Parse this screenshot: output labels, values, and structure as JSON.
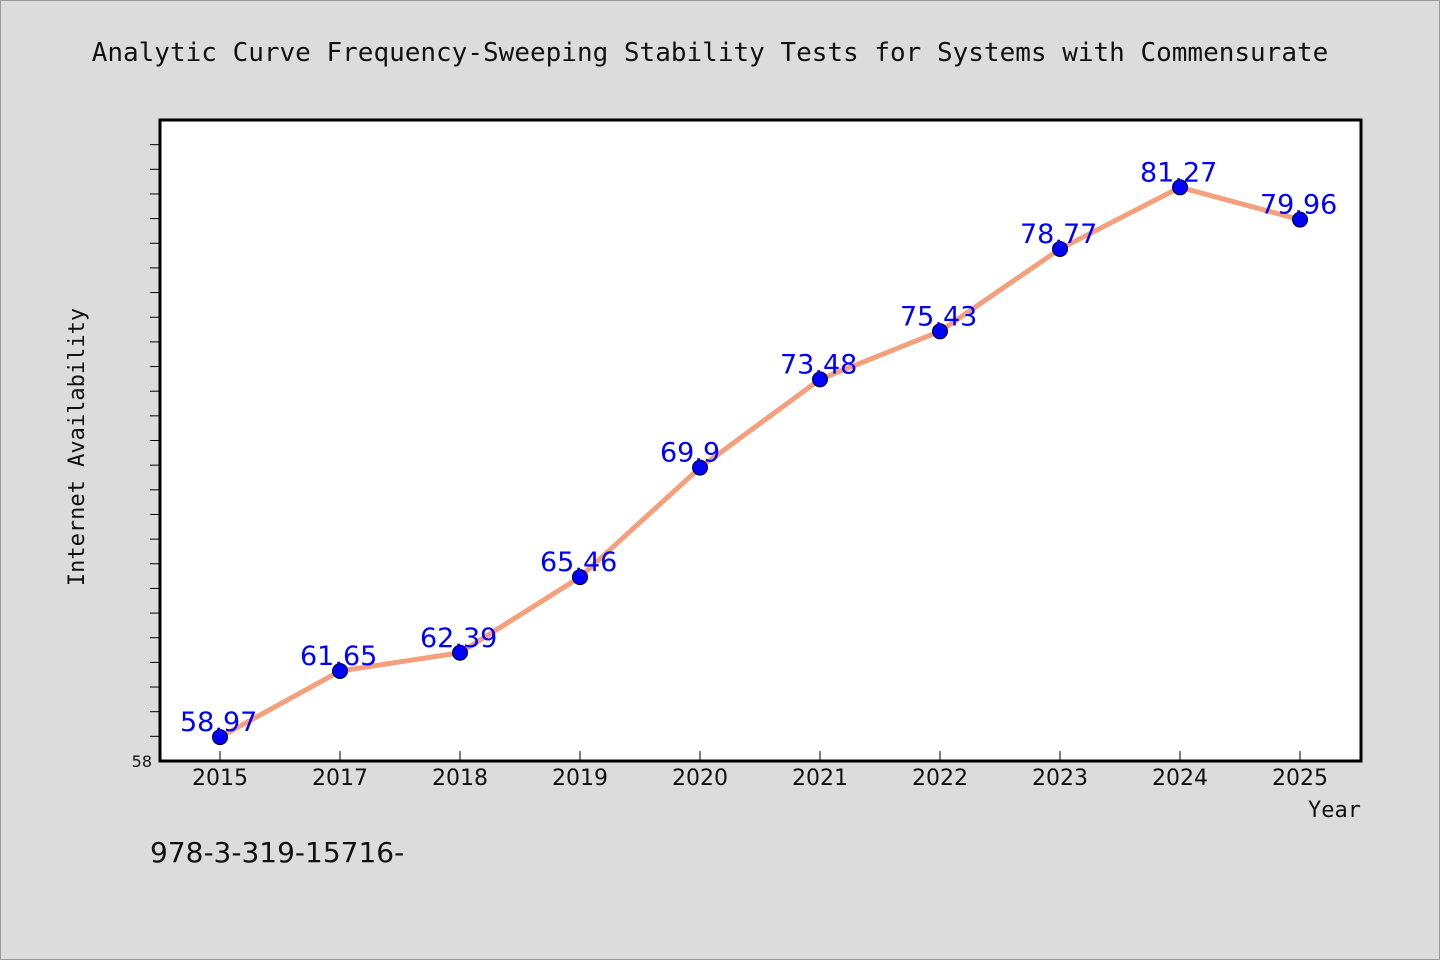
{
  "chart_data": {
    "type": "line",
    "title": "Analytic Curve Frequency-Sweeping Stability Tests for Systems with Commensurate",
    "xlabel": "Year",
    "ylabel": "Internet Availability",
    "categories": [
      "2015",
      "2017",
      "2018",
      "2019",
      "2020",
      "2021",
      "2022",
      "2023",
      "2024",
      "2025"
    ],
    "series": [
      {
        "values": [
          58.97,
          61.65,
          62.39,
          65.46,
          69.9,
          73.48,
          75.43,
          78.77,
          81.27,
          79.96
        ],
        "data_labels": [
          "58.97",
          "61.65",
          "62.39",
          "65.46",
          "69.9",
          "73.48",
          "75.43",
          "78.77",
          "81.27",
          "79.96"
        ]
      }
    ],
    "y_tick_labels": [
      "58"
    ],
    "ylim": [
      58,
      84
    ],
    "grid": false,
    "legend": "none",
    "colors": {
      "line": "#f4a07c",
      "marker": "#0000ff",
      "data_label": "#0000ff",
      "background": "#dcdcdc",
      "plot_background": "#ffffff"
    }
  },
  "footer": {
    "text": "978-3-319-15716-"
  }
}
